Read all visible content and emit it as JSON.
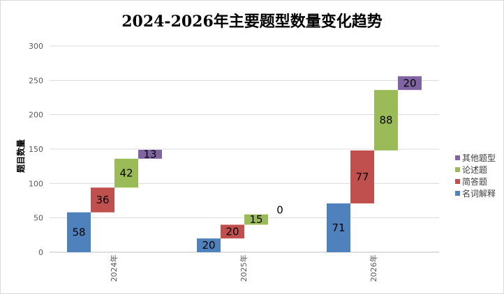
{
  "chart_data": {
    "type": "bar",
    "subtype": "stacked-waterfall",
    "title": "2024-2026年主要题型数量变化趋势",
    "ylabel": "题目数量",
    "xlabel": "",
    "ylim": [
      0,
      300
    ],
    "yticks": [
      0,
      50,
      100,
      150,
      200,
      250,
      300
    ],
    "grid": true,
    "legend_position": "right",
    "categories": [
      "2024年",
      "2025年",
      "2026年"
    ],
    "series": [
      {
        "name": "名词解释",
        "color": "#4f81bd",
        "values": [
          58,
          20,
          71
        ]
      },
      {
        "name": "简答题",
        "color": "#c0504d",
        "values": [
          36,
          20,
          77
        ]
      },
      {
        "name": "论述题",
        "color": "#9bbb59",
        "values": [
          42,
          15,
          88
        ]
      },
      {
        "name": "其他题型",
        "color": "#8064a2",
        "values": [
          13,
          0,
          20
        ]
      }
    ]
  }
}
